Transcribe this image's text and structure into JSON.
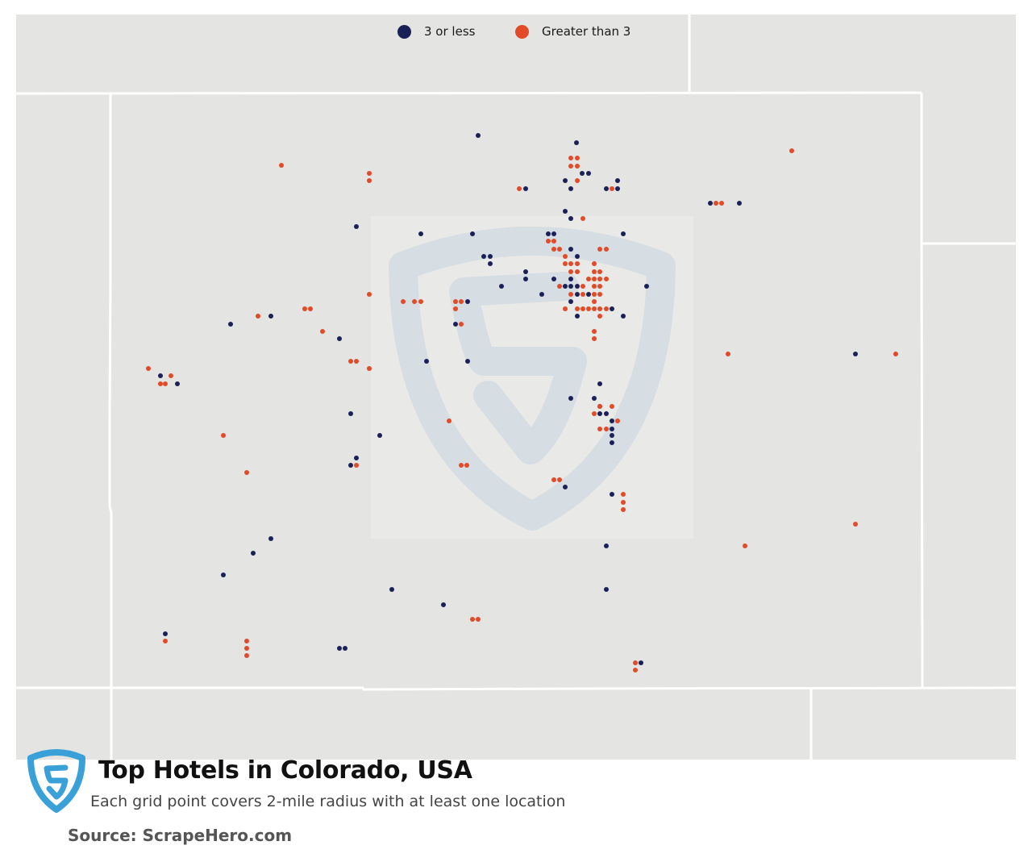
{
  "title": "Top Hotels in Colorado, USA",
  "subtitle": "Each grid point covers 2-mile radius with at least one location",
  "source": "Source: ScrapeHero.com",
  "legend": {
    "low_label": "3 or less",
    "high_label": "Greater than 3"
  },
  "colors": {
    "low": "#1a2158",
    "high": "#e34a27",
    "land": "#e4e4e2",
    "borders": "#ffffff",
    "watermark": "#d6dde3",
    "logo": "#3aa0d8"
  },
  "icons": {
    "logo": "scrapehero-shield-logo",
    "watermark": "scrapehero-shield-watermark"
  }
}
